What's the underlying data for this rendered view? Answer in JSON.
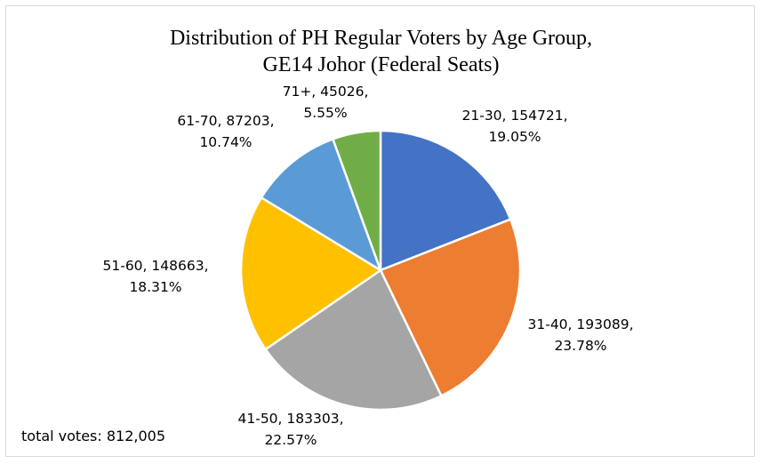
{
  "chart_data": {
    "type": "pie",
    "title_line1": "Distribution of PH Regular Voters by Age Group,",
    "title_line2": "GE14 Johor (Federal Seats)",
    "slices": [
      {
        "label": "21-30",
        "value": 154721,
        "percent": "19.05%",
        "color": "#4472C4",
        "line1": "21-30, 154721,",
        "line2": "19.05%"
      },
      {
        "label": "31-40",
        "value": 193089,
        "percent": "23.78%",
        "color": "#ED7D31",
        "line1": "31-40, 193089,",
        "line2": "23.78%"
      },
      {
        "label": "41-50",
        "value": 183303,
        "percent": "22.57%",
        "color": "#A5A5A5",
        "line1": "41-50, 183303,",
        "line2": "22.57%"
      },
      {
        "label": "51-60",
        "value": 148663,
        "percent": "18.31%",
        "color": "#FFC000",
        "line1": "51-60, 148663,",
        "line2": "18.31%"
      },
      {
        "label": "61-70",
        "value": 87203,
        "percent": "10.74%",
        "color": "#5B9BD5",
        "line1": "61-70, 87203,",
        "line2": "10.74%"
      },
      {
        "label": "71+",
        "value": 45026,
        "percent": "5.55%",
        "color": "#70AD47",
        "line1": "71+, 45026,",
        "line2": "5.55%"
      }
    ],
    "annotation": "total votes: 812,005"
  }
}
